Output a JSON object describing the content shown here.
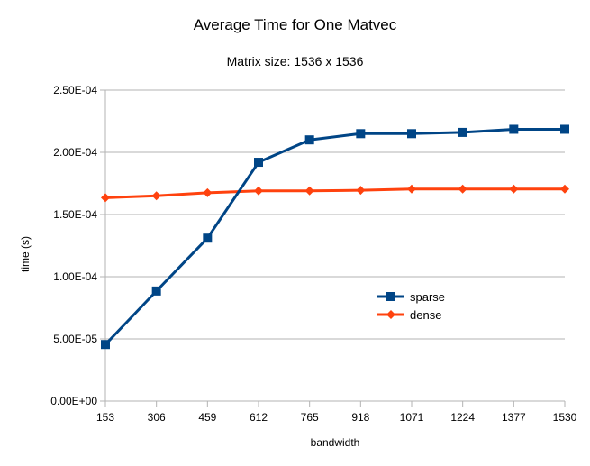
{
  "chart_data": {
    "type": "line",
    "title": "Average Time for One Matvec",
    "subtitle": "Matrix size: 1536 x 1536",
    "xlabel": "bandwidth",
    "ylabel": "time (s)",
    "categories": [
      "153",
      "306",
      "459",
      "612",
      "765",
      "918",
      "1071",
      "1224",
      "1377",
      "1530"
    ],
    "ylim": [
      0,
      0.00025
    ],
    "y_ticks": [
      "0.00E+00",
      "5.00E-05",
      "1.00E-04",
      "1.50E-04",
      "2.00E-04",
      "2.50E-04"
    ],
    "y_tick_values": [
      0,
      5e-05,
      0.0001,
      0.00015,
      0.0002,
      0.00025
    ],
    "grid": "horizontal",
    "legend_position": "right-center",
    "series": [
      {
        "name": "sparse",
        "color": "#004586",
        "marker": "square",
        "values": [
          4.55e-05,
          8.85e-05,
          0.000131,
          0.000192,
          0.00021,
          0.000215,
          0.000215,
          0.000216,
          0.0002185,
          0.0002185
        ]
      },
      {
        "name": "dense",
        "color": "#ff420e",
        "marker": "diamond",
        "values": [
          0.0001635,
          0.000165,
          0.0001675,
          0.000169,
          0.000169,
          0.0001695,
          0.0001705,
          0.0001705,
          0.0001705,
          0.0001705
        ]
      }
    ]
  }
}
